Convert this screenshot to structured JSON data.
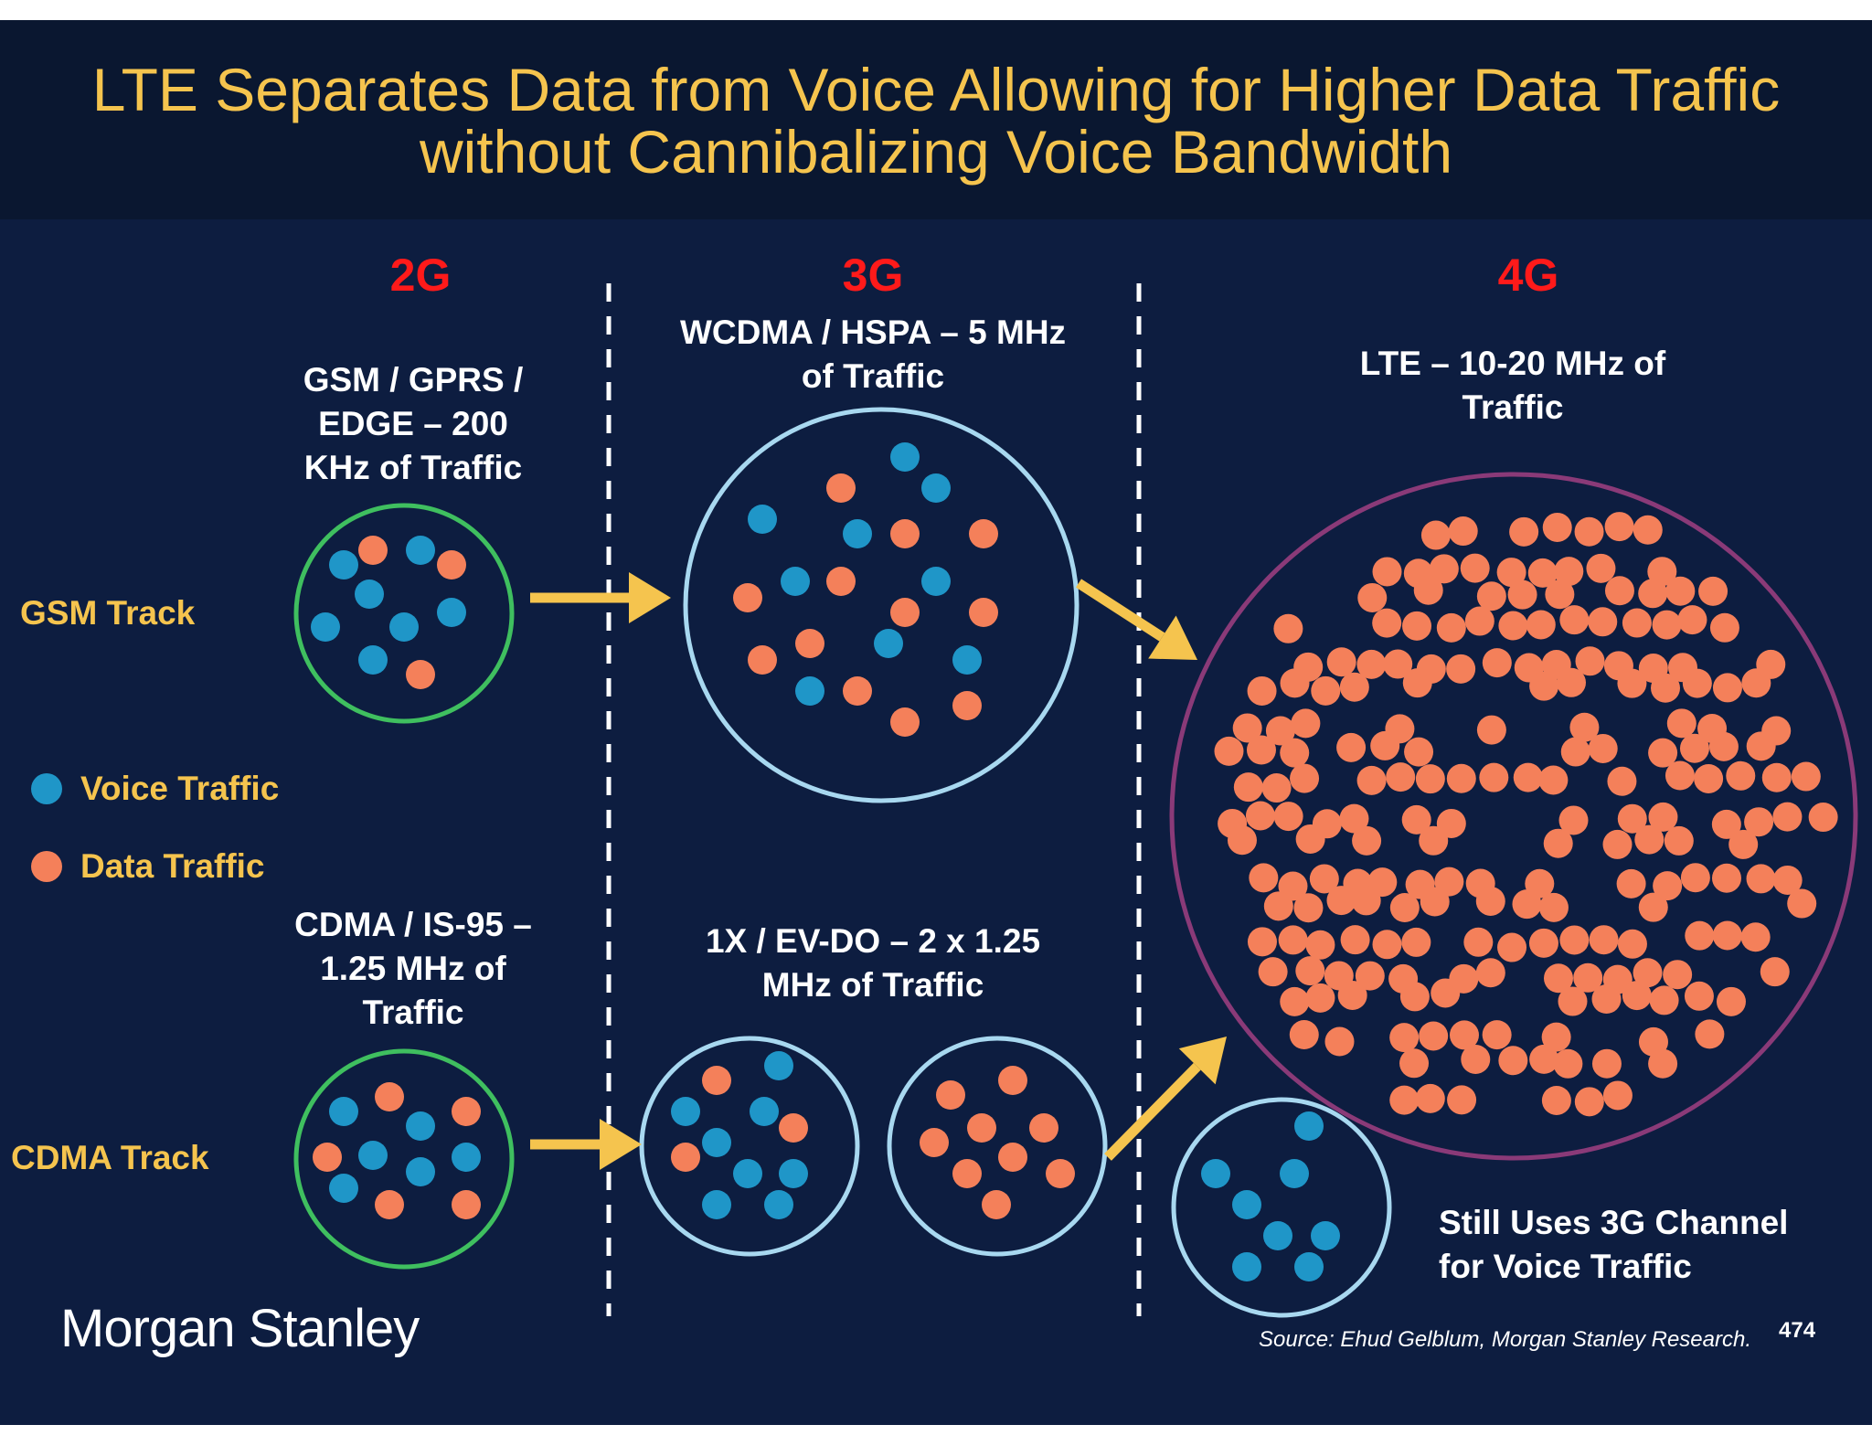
{
  "title": {
    "line1": "LTE Separates Data from Voice Allowing for Higher Data Traffic",
    "line2": "without Cannibalizing Voice Bandwidth"
  },
  "generations": {
    "g2": "2G",
    "g3": "3G",
    "g4": "4G"
  },
  "labels": {
    "gsm_2g": [
      "GSM / GPRS /",
      "EDGE – 200",
      "KHz of Traffic"
    ],
    "wcdma_3g": [
      "WCDMA / HSPA – 5 MHz",
      "of Traffic"
    ],
    "lte_4g": [
      "LTE – 10-20 MHz of",
      "Traffic"
    ],
    "cdma_2g": [
      "CDMA / IS-95 –",
      "1.25 MHz of",
      "Traffic"
    ],
    "evdo_3g": [
      "1X / EV-DO – 2 x 1.25",
      "MHz of Traffic"
    ],
    "voice_4g": [
      "Still Uses 3G Channel",
      "for Voice Traffic"
    ]
  },
  "tracks": {
    "gsm": "GSM Track",
    "cdma": "CDMA Track"
  },
  "legend": {
    "voice": "Voice Traffic",
    "data": "Data Traffic"
  },
  "logo": "Morgan Stanley",
  "source": "Source: Ehud Gelblum, Morgan Stanley Research.",
  "page_number": "474",
  "colors": {
    "background": "#0d1d40",
    "title_bar": "#0a1730",
    "title_text": "#f5c44e",
    "generation_text": "#ff1a1a",
    "track_text": "#f5c44e",
    "voice_dot": "#1f96c8",
    "data_dot": "#f4805a",
    "circle_2g": "#3fbf5f",
    "circle_3g": "#a8d8f0",
    "circle_lte": "#8a3a78",
    "arrow": "#f5c44e",
    "divider": "#ffffff"
  }
}
